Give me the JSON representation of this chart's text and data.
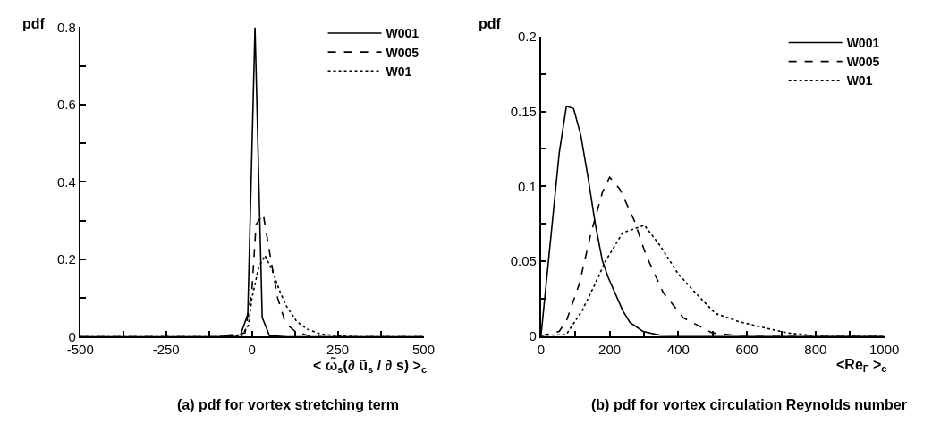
{
  "chart_data": [
    {
      "type": "line",
      "title": "(a) pdf for vortex stretching term",
      "xlabel": "< ω̃$_{s}$(∂ ũ$_{s}$ / ∂ s) >$_{c}$",
      "ylabel": "pdf",
      "legend": "top right",
      "xlim": [
        -500,
        500
      ],
      "ylim": [
        0,
        0.8
      ],
      "xticks": [
        -500,
        {
          "value": -375,
          "label": null
        },
        -250,
        {
          "value": -125,
          "label": null
        },
        0,
        {
          "value": 125,
          "label": null
        },
        250,
        {
          "value": 375,
          "label": null
        },
        500
      ],
      "yticks": [
        0,
        {
          "value": 0.1,
          "label": null
        },
        0.2,
        {
          "value": 0.3,
          "label": null
        },
        0.4,
        {
          "value": 0.5,
          "label": null
        },
        0.6,
        {
          "value": 0.7,
          "label": null
        },
        0.8
      ],
      "series": [
        {
          "name": "W001",
          "color": "#000000",
          "line_style": "solid",
          "x": [
            -500,
            -100,
            -33,
            -12,
            9,
            30,
            51,
            100,
            500
          ],
          "values": [
            0,
            0,
            0.005,
            0.058,
            0.8,
            0.05,
            0.003,
            0,
            0
          ]
        },
        {
          "name": "W005",
          "color": "#000000",
          "line_style": "dashed",
          "x": [
            -500,
            -100,
            -20,
            0,
            12,
            33,
            55,
            75,
            98,
            127,
            160,
            200,
            500
          ],
          "values": [
            0,
            0,
            0.01,
            0.12,
            0.29,
            0.317,
            0.2,
            0.1,
            0.035,
            0.013,
            0.004,
            0,
            0
          ]
        },
        {
          "name": "W01",
          "color": "#000000",
          "line_style": "dotted",
          "x": [
            -500,
            -100,
            -30,
            -10,
            0,
            20,
            38,
            60,
            80,
            100,
            130,
            160,
            200,
            250,
            300,
            500
          ],
          "values": [
            0,
            0,
            0.002,
            0.03,
            0.1,
            0.18,
            0.21,
            0.17,
            0.12,
            0.08,
            0.04,
            0.02,
            0.007,
            0.002,
            0,
            0
          ]
        }
      ]
    },
    {
      "type": "line",
      "title": "(b) pdf for vortex circulation Reynolds number",
      "xlabel": "<Re$_{Γ}$ >$_{c}$",
      "ylabel": "pdf",
      "legend": "top right",
      "xlim": [
        0,
        1000
      ],
      "ylim": [
        0,
        0.2
      ],
      "xticks": [
        0,
        {
          "value": 100,
          "label": null
        },
        200,
        {
          "value": 300,
          "label": null
        },
        400,
        {
          "value": 500,
          "label": null
        },
        600,
        {
          "value": 700,
          "label": null
        },
        800,
        {
          "value": 900,
          "label": null
        },
        1000
      ],
      "yticks": [
        0,
        {
          "value": 0.025,
          "label": null
        },
        0.05,
        {
          "value": 0.075,
          "label": null
        },
        0.1,
        {
          "value": 0.125,
          "label": null
        },
        0.15,
        {
          "value": 0.175,
          "label": null
        },
        0.2
      ],
      "series": [
        {
          "name": "W001",
          "color": "#000000",
          "line_style": "solid",
          "x": [
            0,
            53,
            74,
            95,
            116,
            137,
            158,
            179,
            196,
            238,
            259,
            297,
            348,
            400,
            1000
          ],
          "values": [
            0,
            0.122,
            0.1535,
            0.152,
            0.134,
            0.106,
            0.075,
            0.05,
            0.039,
            0.017,
            0.009,
            0.003,
            0.0004,
            0,
            0
          ]
        },
        {
          "name": "W005",
          "color": "#000000",
          "line_style": "dashed",
          "x": [
            0,
            53,
            74,
            112,
            146,
            179,
            200,
            230,
            272,
            306,
            356,
            415,
            499,
            567,
            600,
            1000
          ],
          "values": [
            0,
            0.003,
            0.01,
            0.035,
            0.069,
            0.096,
            0.106,
            0.098,
            0.077,
            0.054,
            0.029,
            0.012,
            0.002,
            0.0004,
            0,
            0
          ]
        },
        {
          "name": "W01",
          "color": "#000000",
          "line_style": "dotted",
          "x": [
            0,
            74,
            120,
            154,
            188,
            238,
            272,
            301,
            348,
            398,
            449,
            508,
            575,
            659,
            718,
            785,
            850,
            1000
          ],
          "values": [
            0,
            0.001,
            0.017,
            0.033,
            0.05,
            0.069,
            0.0715,
            0.074,
            0.06,
            0.042,
            0.029,
            0.015,
            0.0096,
            0.005,
            0.002,
            0.0004,
            0,
            0
          ]
        }
      ]
    }
  ]
}
